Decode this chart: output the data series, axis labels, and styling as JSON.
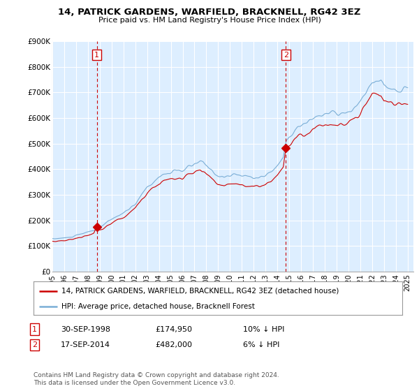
{
  "title": "14, PATRICK GARDENS, WARFIELD, BRACKNELL, RG42 3EZ",
  "subtitle": "Price paid vs. HM Land Registry's House Price Index (HPI)",
  "legend_label_red": "14, PATRICK GARDENS, WARFIELD, BRACKNELL, RG42 3EZ (detached house)",
  "legend_label_blue": "HPI: Average price, detached house, Bracknell Forest",
  "transaction1_date": "30-SEP-1998",
  "transaction1_price": "£174,950",
  "transaction1_hpi": "10% ↓ HPI",
  "transaction2_date": "17-SEP-2014",
  "transaction2_price": "£482,000",
  "transaction2_hpi": "6% ↓ HPI",
  "footnote": "Contains HM Land Registry data © Crown copyright and database right 2024.\nThis data is licensed under the Open Government Licence v3.0.",
  "transaction1_x": 1998.75,
  "transaction1_y": 174950,
  "transaction2_x": 2014.72,
  "transaction2_y": 482000,
  "vline1_x": 1998.75,
  "vline2_x": 2014.72,
  "ylim": [
    0,
    900000
  ],
  "xlim_start": 1995.0,
  "xlim_end": 2025.5,
  "yticks": [
    0,
    100000,
    200000,
    300000,
    400000,
    500000,
    600000,
    700000,
    800000,
    900000
  ],
  "ytick_labels": [
    "£0",
    "£100K",
    "£200K",
    "£300K",
    "£400K",
    "£500K",
    "£600K",
    "£700K",
    "£800K",
    "£900K"
  ],
  "xtick_years": [
    1995,
    1996,
    1997,
    1998,
    1999,
    2000,
    2001,
    2002,
    2003,
    2004,
    2005,
    2006,
    2007,
    2008,
    2009,
    2010,
    2011,
    2012,
    2013,
    2014,
    2015,
    2016,
    2017,
    2018,
    2019,
    2020,
    2021,
    2022,
    2023,
    2024,
    2025
  ],
  "color_red": "#cc0000",
  "color_blue": "#7aaed6",
  "color_vline": "#cc0000",
  "bg_plot": "#ddeeff",
  "bg_color": "#ffffff",
  "grid_color": "#ffffff"
}
